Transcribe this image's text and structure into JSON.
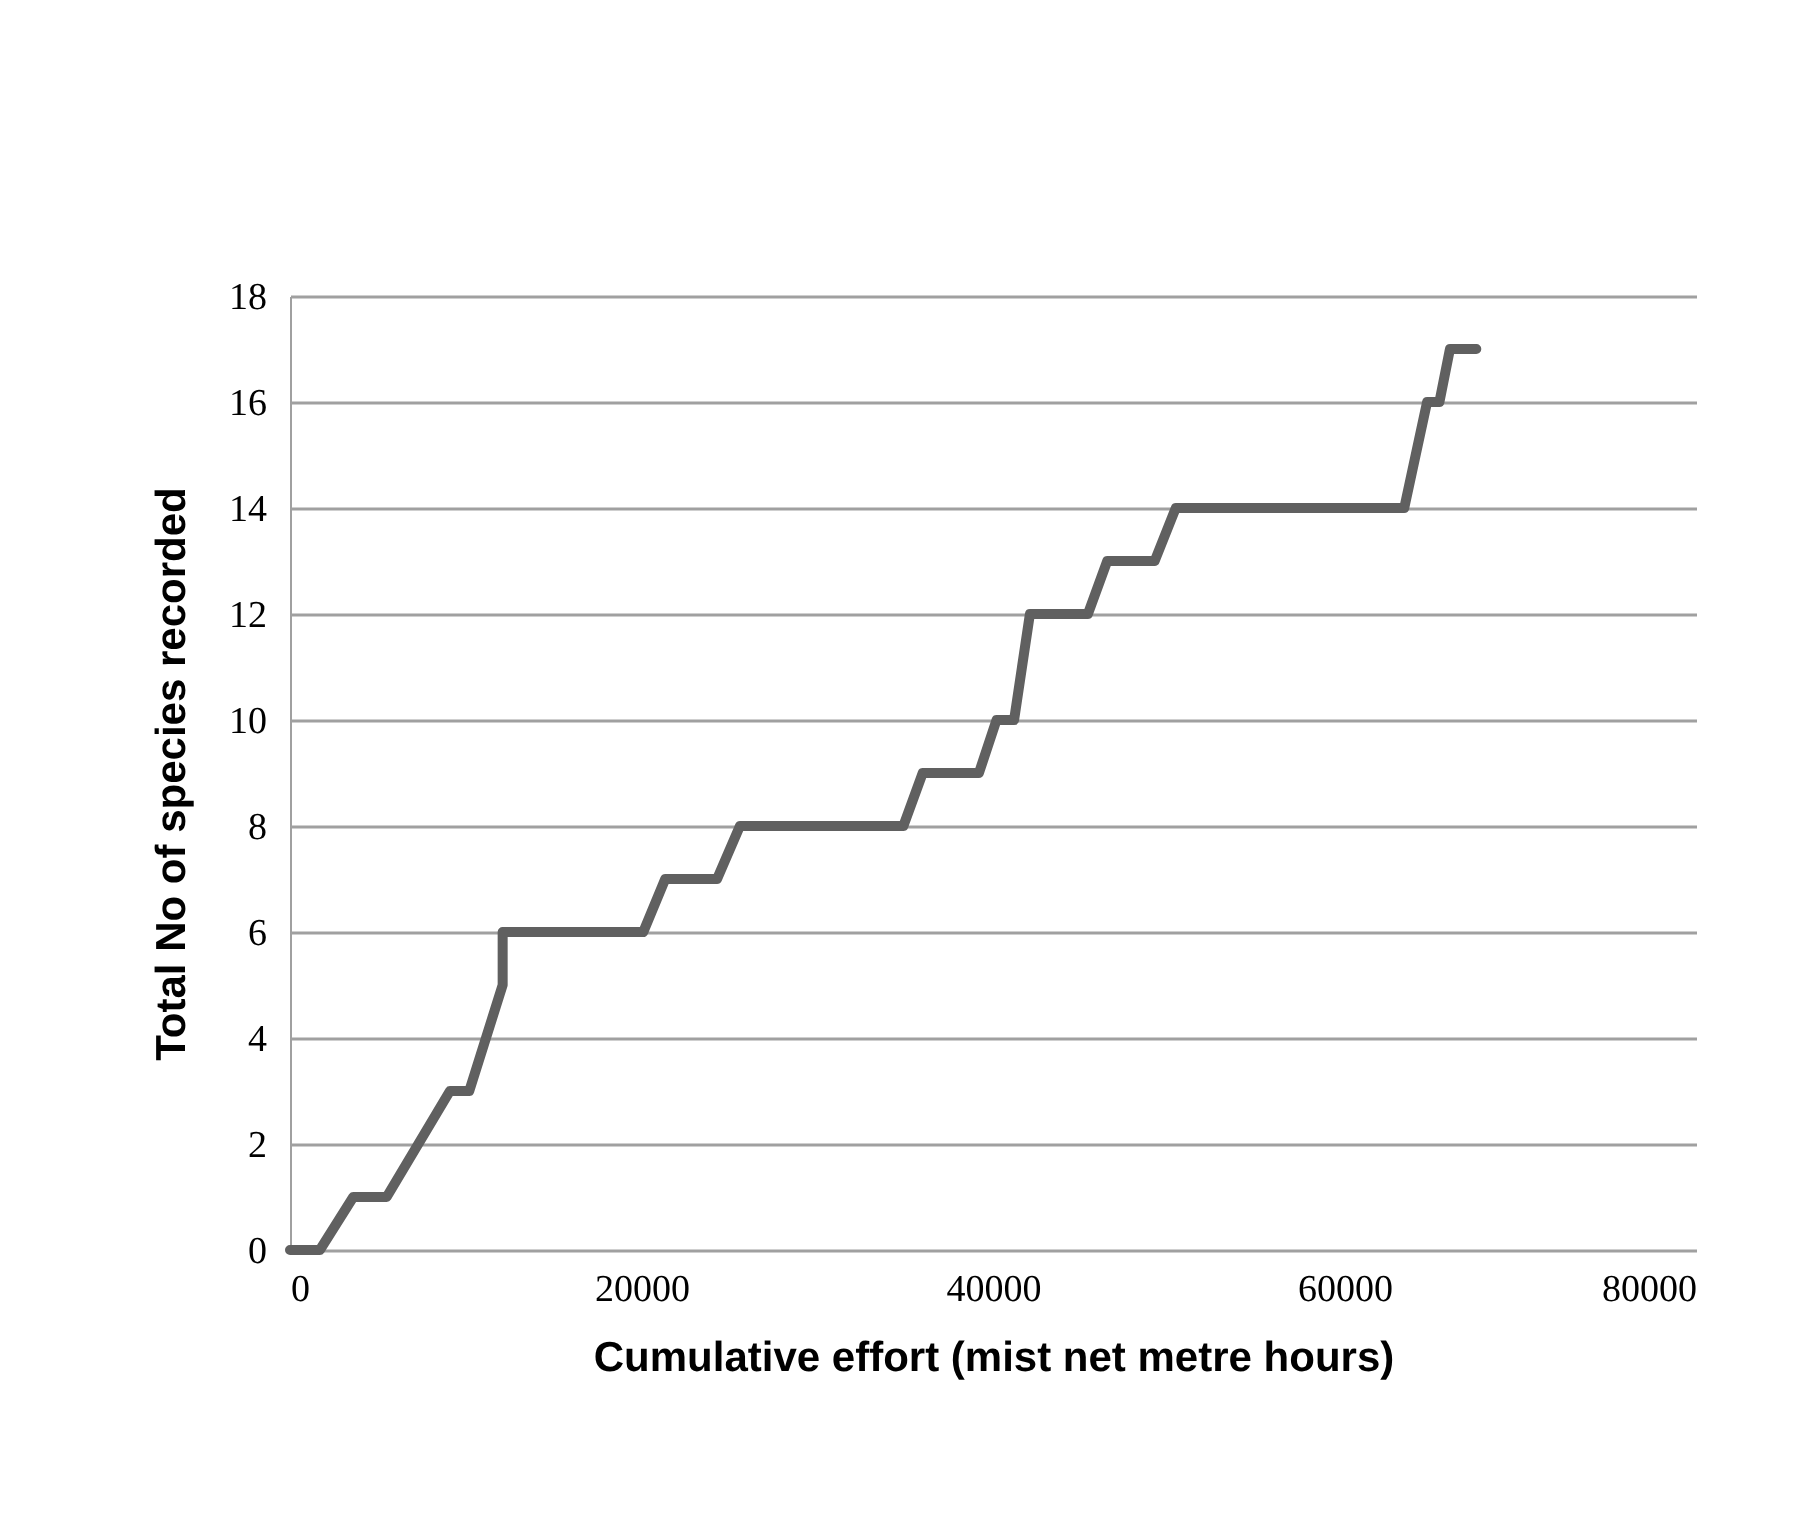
{
  "chart_data": {
    "type": "line",
    "xlabel": "Cumulative effort (mist net metre hours)",
    "ylabel": "Total No of species recorded",
    "xlim": [
      0,
      80000
    ],
    "xticks": [
      0,
      20000,
      40000,
      60000,
      80000
    ],
    "ylim": [
      0,
      18
    ],
    "yticks": [
      0,
      2,
      4,
      6,
      8,
      10,
      12,
      14,
      16,
      18
    ],
    "grid": "y",
    "marker": "none",
    "line_style": "solid",
    "series": [
      {
        "color": "#606060",
        "x": [
          0,
          1700,
          3600,
          5500,
          9100,
          10200,
          12100,
          12100,
          20100,
          21350,
          24300,
          25600,
          34900,
          36000,
          39200,
          40200,
          41200,
          42100,
          45400,
          46500,
          49200,
          50400,
          63400,
          64700,
          65400,
          66000,
          67500
        ],
        "values": [
          0,
          0,
          1,
          1,
          3,
          3,
          5,
          6,
          6,
          7,
          7,
          8,
          8,
          9,
          9,
          10,
          10,
          12,
          12,
          13,
          13,
          14,
          14,
          16,
          16,
          17,
          17
        ]
      }
    ]
  }
}
